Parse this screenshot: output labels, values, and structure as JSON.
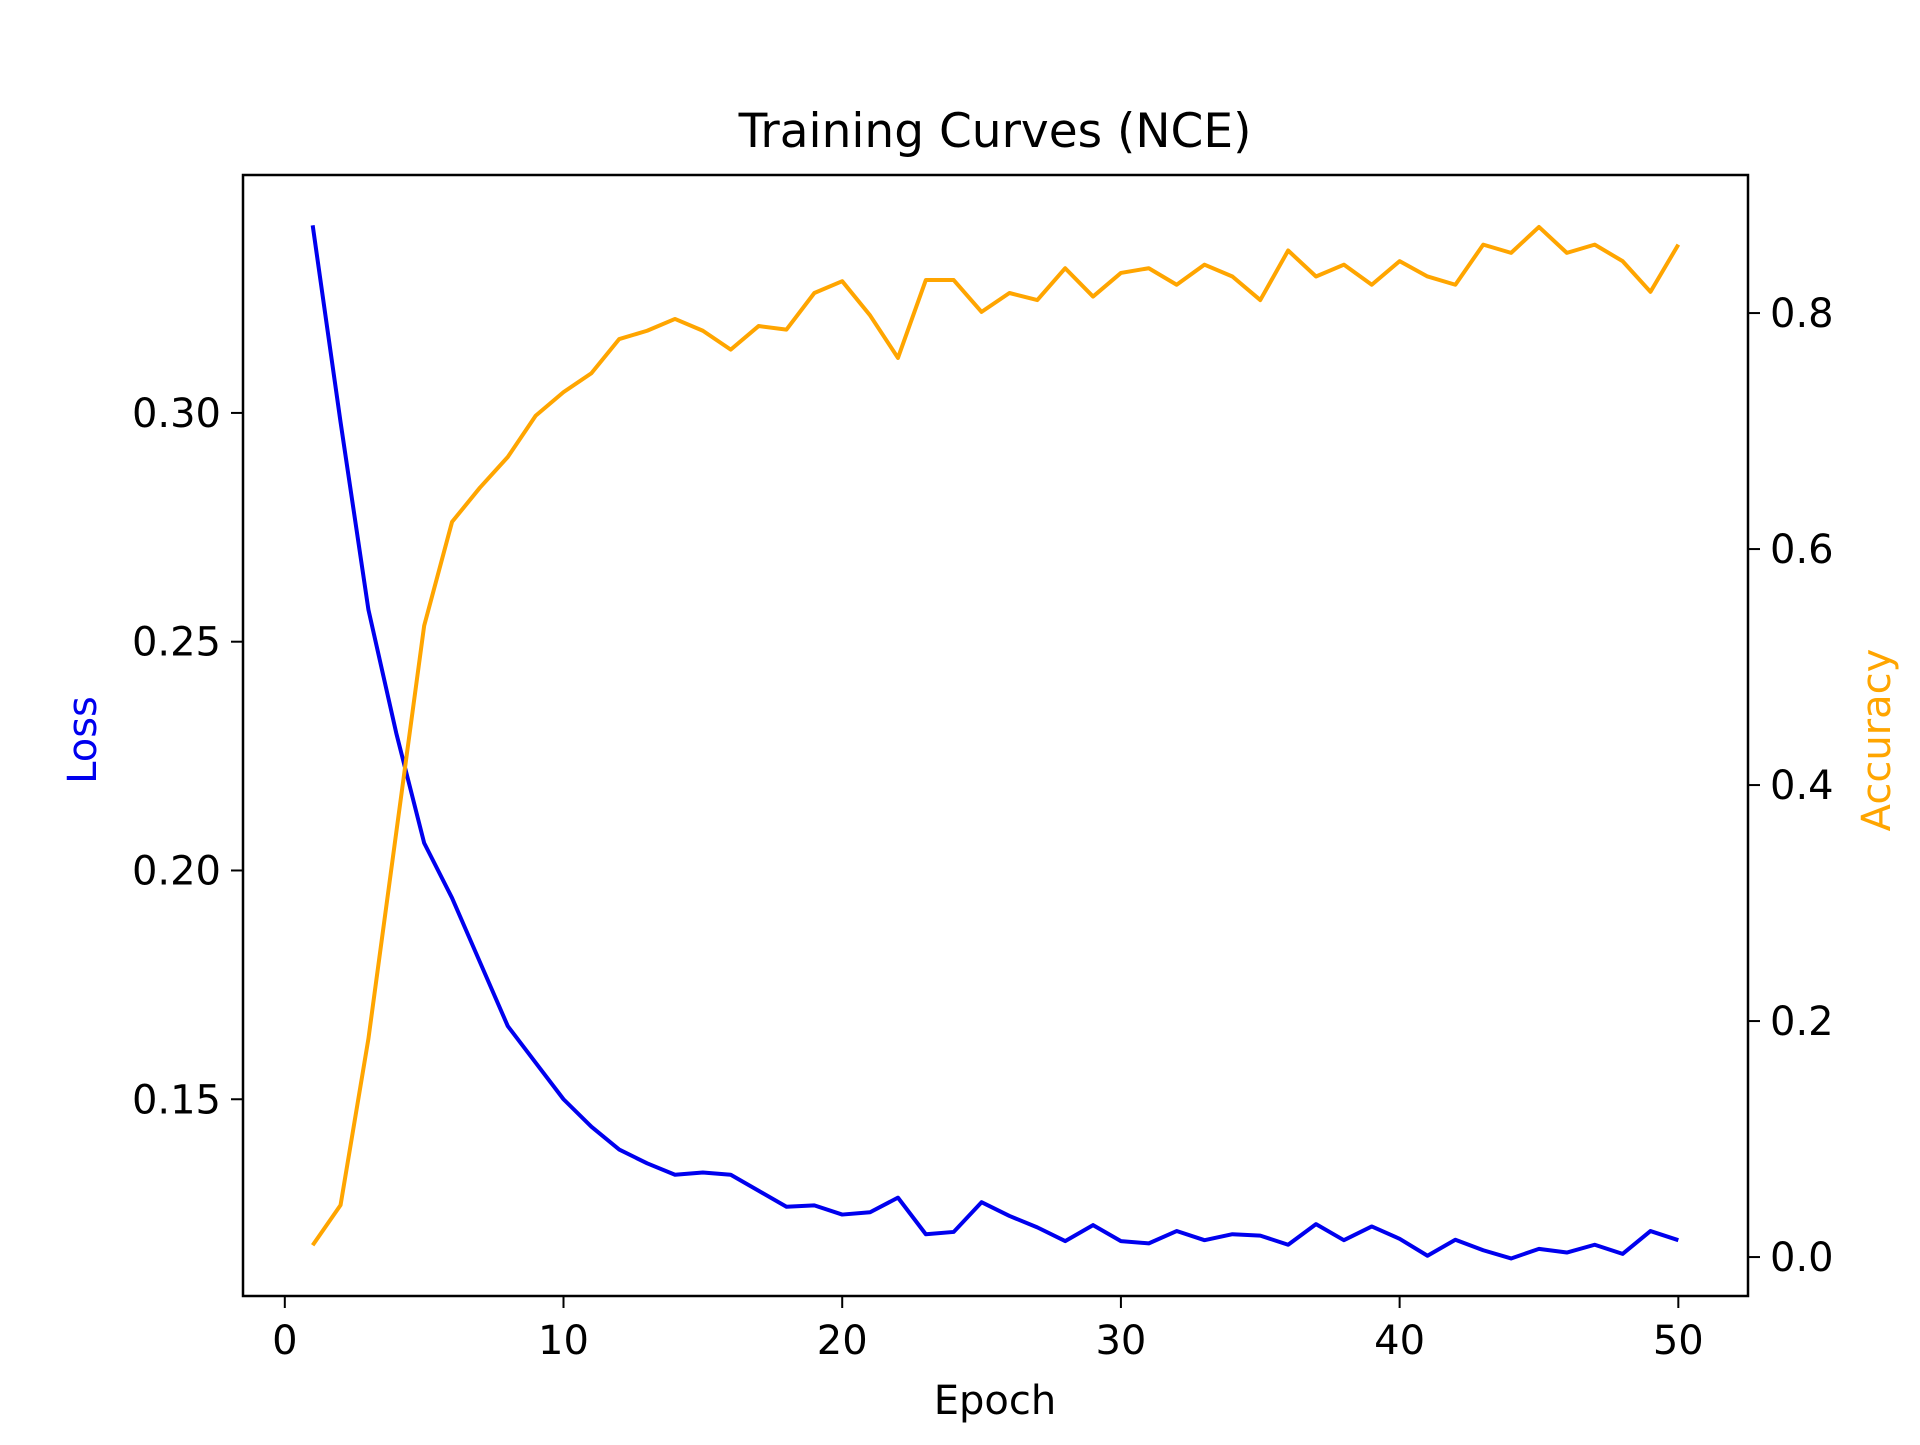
{
  "chart_data": {
    "type": "line",
    "title": "Training Curves (NCE)",
    "xlabel": "Epoch",
    "ylabel_left": "Loss",
    "ylabel_right": "Accuracy",
    "xlim": [
      -1.5,
      52.5
    ],
    "ylim_left": [
      0.107,
      0.352
    ],
    "ylim_right": [
      -0.033,
      0.917
    ],
    "x_ticks": [
      0,
      10,
      20,
      30,
      40,
      50
    ],
    "y_ticks_left": [
      0.15,
      0.2,
      0.25,
      0.3
    ],
    "y_ticks_right": [
      0.0,
      0.2,
      0.4,
      0.6,
      0.8
    ],
    "grid": false,
    "colors": {
      "loss": "#0000ee",
      "accuracy": "#ffa500",
      "axes": "#000000"
    },
    "x": [
      1,
      2,
      3,
      4,
      5,
      6,
      7,
      8,
      9,
      10,
      11,
      12,
      13,
      14,
      15,
      16,
      17,
      18,
      19,
      20,
      21,
      22,
      23,
      24,
      25,
      26,
      27,
      28,
      29,
      30,
      31,
      32,
      33,
      34,
      35,
      36,
      37,
      38,
      39,
      40,
      41,
      42,
      43,
      44,
      45,
      46,
      47,
      48,
      49,
      50
    ],
    "series": [
      {
        "key": "loss",
        "axis": "left",
        "values": [
          0.341,
          0.298,
          0.257,
          0.23,
          0.206,
          0.194,
          0.18,
          0.166,
          0.158,
          0.15,
          0.144,
          0.139,
          0.136,
          0.1335,
          0.134,
          0.1335,
          0.13,
          0.1265,
          0.1268,
          0.1248,
          0.1253,
          0.1285,
          0.1205,
          0.121,
          0.1275,
          0.1245,
          0.122,
          0.119,
          0.1225,
          0.119,
          0.1185,
          0.1212,
          0.1192,
          0.1205,
          0.1202,
          0.1182,
          0.1227,
          0.1192,
          0.1222,
          0.1195,
          0.1158,
          0.1193,
          0.117,
          0.1152,
          0.1173,
          0.1165,
          0.1182,
          0.1162,
          0.1212,
          0.1192
        ]
      },
      {
        "key": "accuracy",
        "axis": "right",
        "values": [
          0.01,
          0.044,
          0.185,
          0.36,
          0.535,
          0.623,
          0.652,
          0.678,
          0.713,
          0.733,
          0.749,
          0.778,
          0.785,
          0.795,
          0.785,
          0.769,
          0.789,
          0.786,
          0.817,
          0.827,
          0.798,
          0.762,
          0.828,
          0.828,
          0.801,
          0.817,
          0.811,
          0.838,
          0.814,
          0.834,
          0.838,
          0.824,
          0.841,
          0.831,
          0.811,
          0.853,
          0.831,
          0.841,
          0.824,
          0.844,
          0.831,
          0.824,
          0.858,
          0.851,
          0.873,
          0.851,
          0.858,
          0.844,
          0.818,
          0.858
        ]
      }
    ]
  }
}
